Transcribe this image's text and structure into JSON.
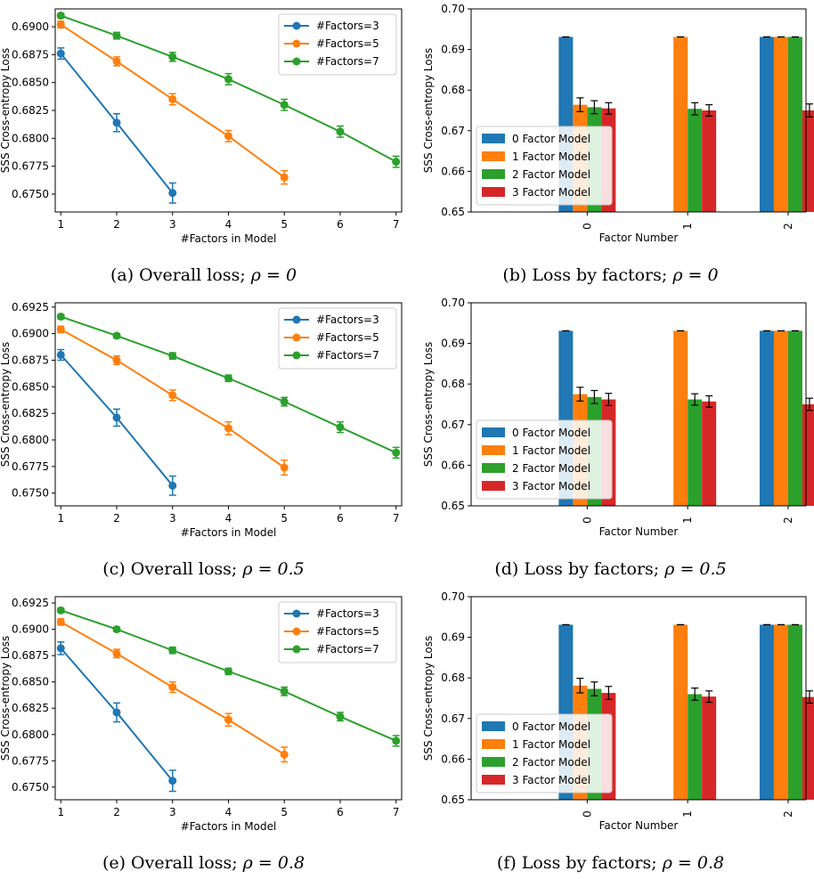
{
  "colors": {
    "blue": "#1f77b4",
    "orange": "#ff7f0e",
    "green": "#2ca02c",
    "red": "#d62728"
  },
  "captions": [
    {
      "label": "(a) Overall loss;",
      "rho": "ρ = 0"
    },
    {
      "label": "(b) Loss by factors;",
      "rho": "ρ = 0"
    },
    {
      "label": "(c) Overall loss;",
      "rho": "ρ = 0.5"
    },
    {
      "label": "(d) Loss by factors;",
      "rho": "ρ = 0.5"
    },
    {
      "label": "(e) Overall loss;",
      "rho": "ρ = 0.8"
    },
    {
      "label": "(f) Loss by factors;",
      "rho": "ρ = 0.8"
    }
  ],
  "chart_data": [
    {
      "type": "line",
      "xlabel": "#Factors in Model",
      "ylabel": "SSS Cross-entropy Loss",
      "xlim": [
        0.9,
        7.1
      ],
      "ylim": [
        0.6734,
        0.6916
      ],
      "xticks": [
        1,
        2,
        3,
        4,
        5,
        6,
        7
      ],
      "yticks": [
        0.675,
        0.6775,
        0.68,
        0.6825,
        0.685,
        0.6875,
        0.69
      ],
      "ytick_labels": [
        "0.6750",
        "0.6775",
        "0.6800",
        "0.6825",
        "0.6850",
        "0.6875",
        "0.6900"
      ],
      "legend_loc": "top-right",
      "series": [
        {
          "name": "#Factors=3",
          "color": "#1f77b4",
          "x": [
            1,
            2,
            3
          ],
          "y": [
            0.6876,
            0.6814,
            0.6751
          ],
          "err": [
            0.0005,
            0.0008,
            0.0009
          ]
        },
        {
          "name": "#Factors=5",
          "color": "#ff7f0e",
          "x": [
            1,
            2,
            3,
            4,
            5
          ],
          "y": [
            0.6902,
            0.6869,
            0.6835,
            0.6802,
            0.6765
          ],
          "err": [
            0.0003,
            0.0004,
            0.0005,
            0.0005,
            0.0006
          ]
        },
        {
          "name": "#Factors=7",
          "color": "#2ca02c",
          "x": [
            1,
            2,
            3,
            4,
            5,
            6,
            7
          ],
          "y": [
            0.691,
            0.6892,
            0.6873,
            0.6853,
            0.683,
            0.6806,
            0.6779
          ],
          "err": [
            0.0002,
            0.0003,
            0.0004,
            0.0005,
            0.0005,
            0.0005,
            0.0005
          ]
        }
      ]
    },
    {
      "type": "bar",
      "xlabel": "Factor Number",
      "ylabel": "SSS Cross-entropy Loss",
      "categories": [
        "0",
        "1",
        "2"
      ],
      "ylim": [
        0.65,
        0.7
      ],
      "yticks": [
        0.65,
        0.66,
        0.67,
        0.68,
        0.69,
        0.7
      ],
      "ytick_labels": [
        "0.65",
        "0.66",
        "0.67",
        "0.68",
        "0.69",
        "0.70"
      ],
      "legend_loc": "lower-left",
      "series": [
        {
          "name": "0 Factor Model",
          "color": "#1f77b4",
          "values": [
            0.6931,
            null,
            0.6931
          ],
          "err": [
            0,
            null,
            0
          ]
        },
        {
          "name": "1 Factor Model",
          "color": "#ff7f0e",
          "values": [
            0.6764,
            0.6931,
            0.6931
          ],
          "err": [
            0.0017,
            0,
            0
          ]
        },
        {
          "name": "2 Factor Model",
          "color": "#2ca02c",
          "values": [
            0.6758,
            0.6754,
            0.6931
          ],
          "err": [
            0.0016,
            0.0015,
            0
          ]
        },
        {
          "name": "3 Factor Model",
          "color": "#d62728",
          "values": [
            0.6755,
            0.675,
            0.675
          ],
          "err": [
            0.0014,
            0.0014,
            0.0016
          ]
        }
      ],
      "first_bar_position_group1": "0 Factor Model"
    },
    {
      "type": "line",
      "xlabel": "#Factors in Model",
      "ylabel": "SSS Cross-entropy Loss",
      "xlim": [
        0.9,
        7.1
      ],
      "ylim": [
        0.6738,
        0.6929
      ],
      "xticks": [
        1,
        2,
        3,
        4,
        5,
        6,
        7
      ],
      "yticks": [
        0.675,
        0.6775,
        0.68,
        0.6825,
        0.685,
        0.6875,
        0.69,
        0.6925
      ],
      "ytick_labels": [
        "0.6750",
        "0.6775",
        "0.6800",
        "0.6825",
        "0.6850",
        "0.6875",
        "0.6900",
        "0.6925"
      ],
      "legend_loc": "top-right",
      "series": [
        {
          "name": "#Factors=3",
          "color": "#1f77b4",
          "x": [
            1,
            2,
            3
          ],
          "y": [
            0.688,
            0.6821,
            0.6757
          ],
          "err": [
            0.0005,
            0.0008,
            0.0009
          ]
        },
        {
          "name": "#Factors=5",
          "color": "#ff7f0e",
          "x": [
            1,
            2,
            3,
            4,
            5
          ],
          "y": [
            0.6904,
            0.6875,
            0.6842,
            0.6811,
            0.6774
          ],
          "err": [
            0.0003,
            0.0004,
            0.0005,
            0.0006,
            0.0007
          ]
        },
        {
          "name": "#Factors=7",
          "color": "#2ca02c",
          "x": [
            1,
            2,
            3,
            4,
            5,
            6,
            7
          ],
          "y": [
            0.6916,
            0.6898,
            0.6879,
            0.6858,
            0.6836,
            0.6812,
            0.6788
          ],
          "err": [
            0.0002,
            0.0002,
            0.0003,
            0.0003,
            0.0004,
            0.0005,
            0.0005
          ]
        }
      ]
    },
    {
      "type": "bar",
      "xlabel": "Factor Number",
      "ylabel": "SSS Cross-entropy Loss",
      "categories": [
        "0",
        "1",
        "2"
      ],
      "ylim": [
        0.65,
        0.7
      ],
      "yticks": [
        0.65,
        0.66,
        0.67,
        0.68,
        0.69,
        0.7
      ],
      "ytick_labels": [
        "0.65",
        "0.66",
        "0.67",
        "0.68",
        "0.69",
        "0.70"
      ],
      "legend_loc": "lower-left",
      "series": [
        {
          "name": "0 Factor Model",
          "color": "#1f77b4",
          "values": [
            0.6931,
            null,
            0.6931
          ],
          "err": [
            0,
            null,
            0
          ]
        },
        {
          "name": "1 Factor Model",
          "color": "#ff7f0e",
          "values": [
            0.6775,
            0.6931,
            0.6931
          ],
          "err": [
            0.0017,
            0,
            0
          ]
        },
        {
          "name": "2 Factor Model",
          "color": "#2ca02c",
          "values": [
            0.6768,
            0.6762,
            0.6931
          ],
          "err": [
            0.0016,
            0.0014,
            0
          ]
        },
        {
          "name": "3 Factor Model",
          "color": "#d62728",
          "values": [
            0.6762,
            0.6757,
            0.675
          ],
          "err": [
            0.0015,
            0.0014,
            0.0015
          ]
        }
      ],
      "first_bar_position_group1": "0 Factor Model"
    },
    {
      "type": "line",
      "xlabel": "#Factors in Model",
      "ylabel": "SSS Cross-entropy Loss",
      "xlim": [
        0.9,
        7.1
      ],
      "ylim": [
        0.6738,
        0.6931
      ],
      "xticks": [
        1,
        2,
        3,
        4,
        5,
        6,
        7
      ],
      "yticks": [
        0.675,
        0.6775,
        0.68,
        0.6825,
        0.685,
        0.6875,
        0.69,
        0.6925
      ],
      "ytick_labels": [
        "0.6750",
        "0.6775",
        "0.6800",
        "0.6825",
        "0.6850",
        "0.6875",
        "0.6900",
        "0.6925"
      ],
      "legend_loc": "top-right",
      "series": [
        {
          "name": "#Factors=3",
          "color": "#1f77b4",
          "x": [
            1,
            2,
            3
          ],
          "y": [
            0.6882,
            0.6821,
            0.6756
          ],
          "err": [
            0.0006,
            0.0009,
            0.001
          ]
        },
        {
          "name": "#Factors=5",
          "color": "#ff7f0e",
          "x": [
            1,
            2,
            3,
            4,
            5
          ],
          "y": [
            0.6907,
            0.6877,
            0.6845,
            0.6814,
            0.6781
          ],
          "err": [
            0.0003,
            0.0004,
            0.0005,
            0.0006,
            0.0007
          ]
        },
        {
          "name": "#Factors=7",
          "color": "#2ca02c",
          "x": [
            1,
            2,
            3,
            4,
            5,
            6,
            7
          ],
          "y": [
            0.6918,
            0.69,
            0.688,
            0.686,
            0.6841,
            0.6817,
            0.6794
          ],
          "err": [
            0.0002,
            0.0002,
            0.0003,
            0.0003,
            0.0004,
            0.0004,
            0.0005
          ]
        }
      ]
    },
    {
      "type": "bar",
      "xlabel": "Factor Number",
      "ylabel": "SSS Cross-entropy Loss",
      "categories": [
        "0",
        "1",
        "2"
      ],
      "ylim": [
        0.65,
        0.7
      ],
      "yticks": [
        0.65,
        0.66,
        0.67,
        0.68,
        0.69,
        0.7
      ],
      "ytick_labels": [
        "0.65",
        "0.66",
        "0.67",
        "0.68",
        "0.69",
        "0.70"
      ],
      "legend_loc": "lower-left",
      "series": [
        {
          "name": "0 Factor Model",
          "color": "#1f77b4",
          "values": [
            0.6931,
            null,
            0.6931
          ],
          "err": [
            0,
            null,
            0
          ]
        },
        {
          "name": "1 Factor Model",
          "color": "#ff7f0e",
          "values": [
            0.6781,
            0.6931,
            0.6931
          ],
          "err": [
            0.0018,
            0,
            0
          ]
        },
        {
          "name": "2 Factor Model",
          "color": "#2ca02c",
          "values": [
            0.6773,
            0.676,
            0.6931
          ],
          "err": [
            0.0017,
            0.0015,
            0
          ]
        },
        {
          "name": "3 Factor Model",
          "color": "#d62728",
          "values": [
            0.6763,
            0.6754,
            0.6753
          ],
          "err": [
            0.0016,
            0.0014,
            0.0015
          ]
        }
      ],
      "first_bar_position_group1": "0 Factor Model"
    }
  ]
}
